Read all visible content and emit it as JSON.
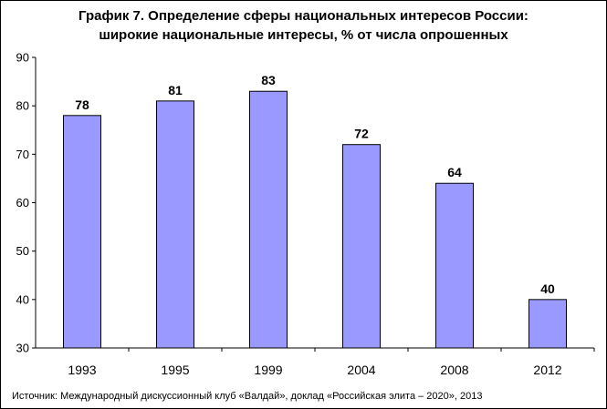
{
  "chart_data": {
    "type": "bar",
    "title_line1": "График 7. Определение сферы национальных интересов России:",
    "title_line2": "широкие национальные интересы, % от числа опрошенных",
    "categories": [
      "1993",
      "1995",
      "1999",
      "2004",
      "2008",
      "2012"
    ],
    "values": [
      78,
      81,
      83,
      72,
      64,
      40
    ],
    "ylim": [
      30,
      90
    ],
    "yticks": [
      30,
      40,
      50,
      60,
      70,
      80,
      90
    ],
    "grid": false,
    "legend": "none",
    "bar_color": "#9999ff",
    "source": "Источник: Международный дискуссионный клуб «Валдай», доклад «Российская элита – 2020», 2013"
  }
}
